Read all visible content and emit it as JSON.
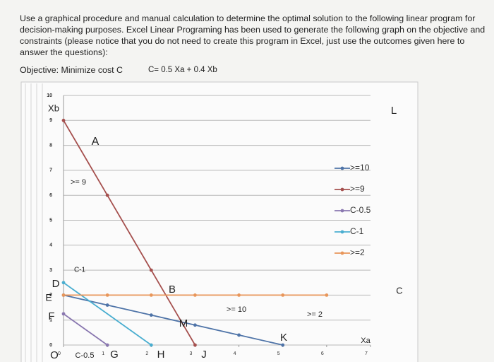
{
  "question": "Use a graphical procedure and manual calculation to determine the optimal solution to the following linear program for decision-making purposes. Excel Linear Programing has been used to generate the following graph on the objective and constraints (please notice that you do not need to create this program in Excel, just use the outcomes given here to answer the questions):",
  "objective_label": "Objective: Minimize cost C",
  "objective_formula": "C= 0.5 Xa + 0.4 Xb",
  "chart_data": {
    "type": "line",
    "xlim": [
      0,
      7
    ],
    "ylim": [
      0,
      10
    ],
    "xticks": [
      0,
      1,
      2,
      3,
      4,
      5,
      6,
      7
    ],
    "yticks": [
      0,
      1,
      2,
      3,
      4,
      5,
      6,
      7,
      8,
      9,
      10
    ],
    "grid": true,
    "series": [
      {
        "name": ">=10",
        "color": "#4f74a8",
        "x": [
          0,
          1,
          2,
          3,
          4,
          5
        ],
        "values": [
          2,
          1.6,
          1.2,
          0.8,
          0.4,
          0
        ]
      },
      {
        "name": ">=9",
        "color": "#a5504e",
        "x": [
          0,
          1,
          2,
          3
        ],
        "values": [
          9,
          6,
          3,
          0
        ]
      },
      {
        "name": "C-0.5",
        "color": "#8a78b0",
        "x": [
          0,
          1
        ],
        "values": [
          1.25,
          0
        ]
      },
      {
        "name": "C-1",
        "color": "#4aaed0",
        "x": [
          0,
          2
        ],
        "values": [
          2.5,
          0
        ]
      },
      {
        "name": ">=2",
        "color": "#e8965a",
        "x": [
          0,
          1,
          2,
          3,
          4,
          5,
          6
        ],
        "values": [
          2,
          2,
          2,
          2,
          2,
          2,
          2
        ]
      }
    ],
    "annotations": [
      "Xb",
      "L",
      "A",
      ">= 9",
      "C-1",
      "D",
      "E",
      "F",
      "O",
      "C-0.5",
      "G",
      "H",
      "J",
      "B",
      "M",
      ">= 10",
      "K",
      ">= 2",
      "Xa",
      "C"
    ]
  }
}
